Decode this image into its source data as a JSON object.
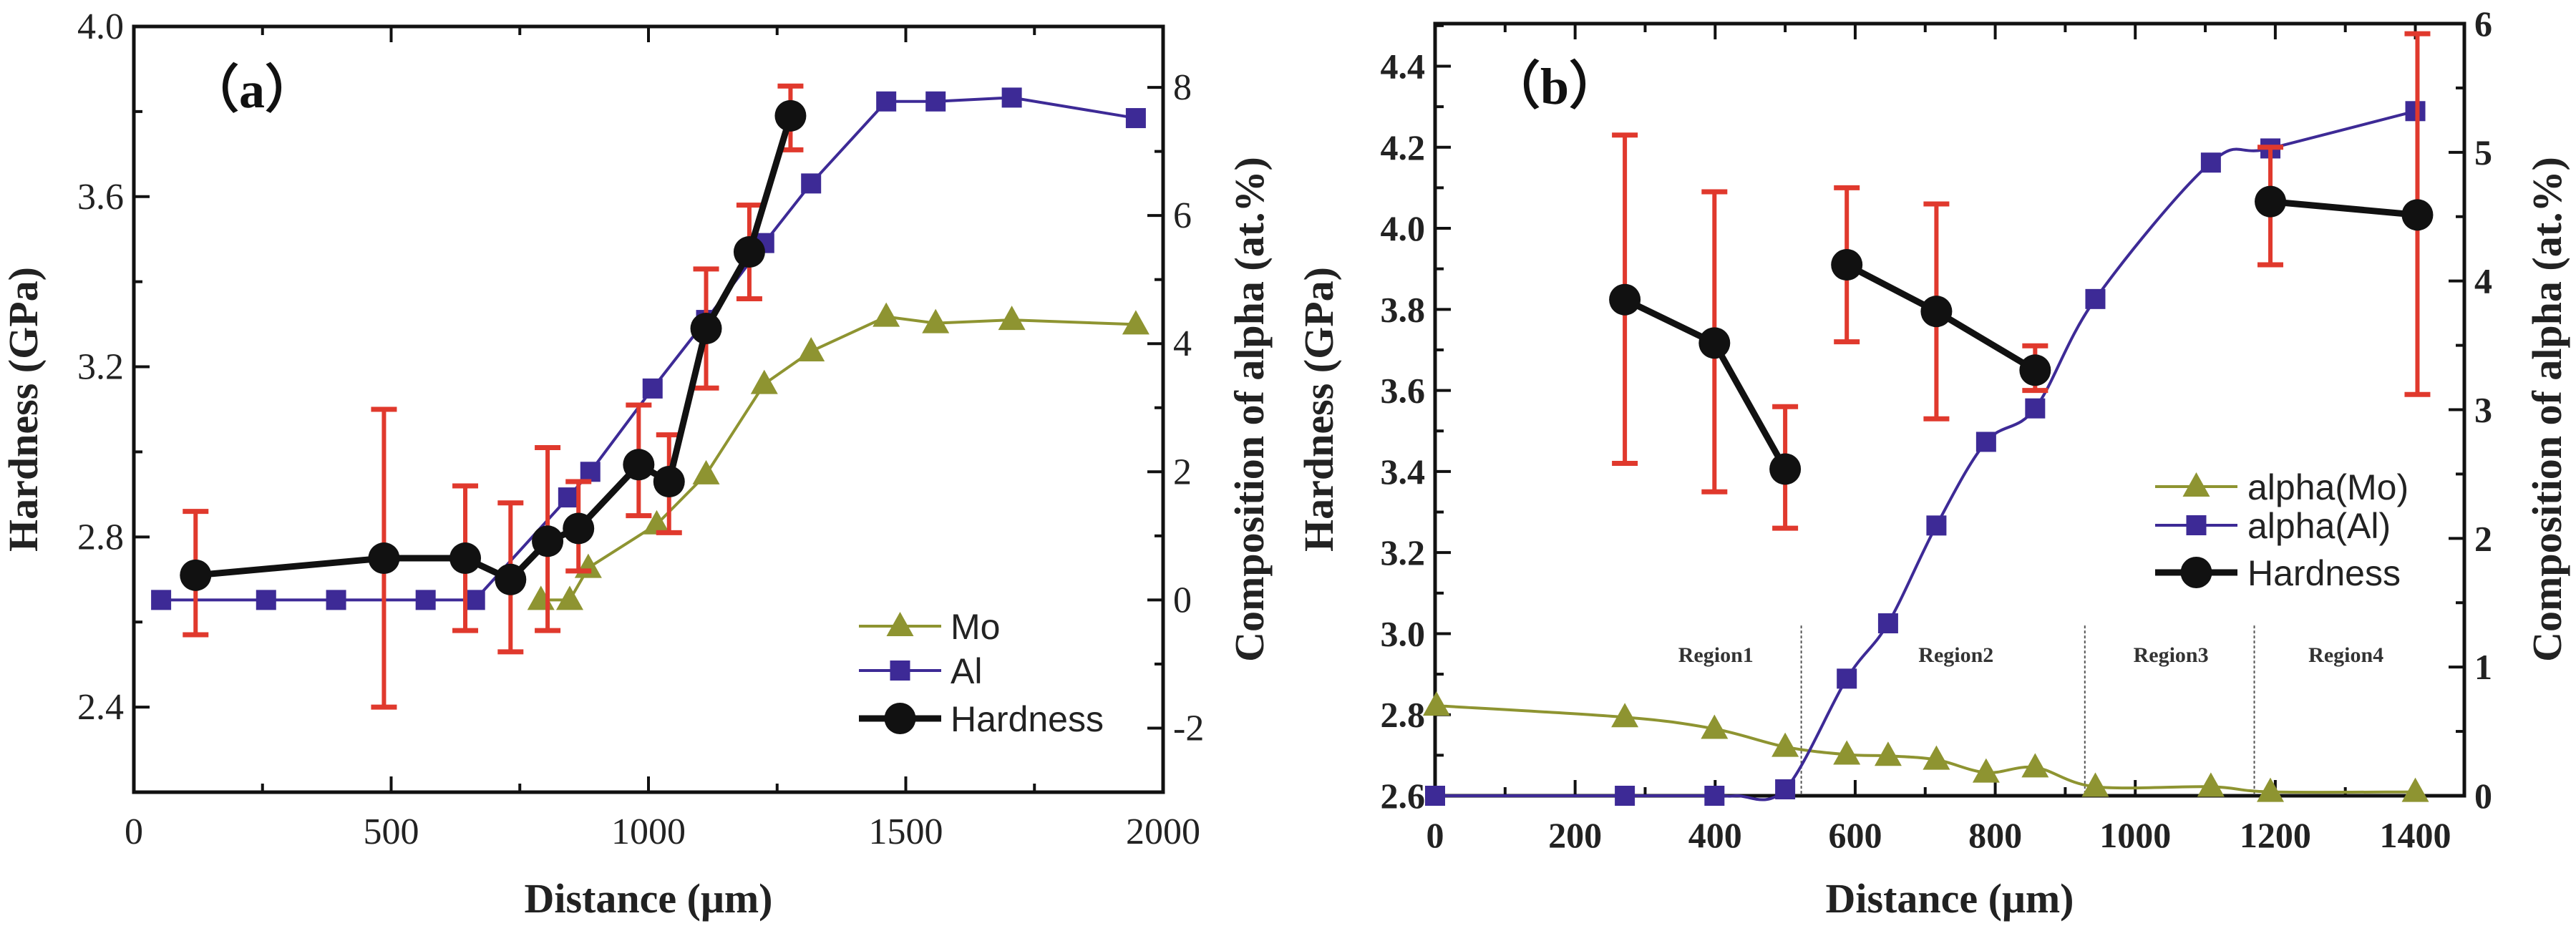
{
  "colors": {
    "mo": "#8e9431",
    "al": "#3d2a96",
    "hardness": "#111111",
    "error": "#e0392d",
    "axis": "#111111"
  },
  "chart_data": [
    {
      "type": "line",
      "panel_label": "（a）",
      "xlabel": "Distance (μm)",
      "ylabel": "Hardness (GPa)",
      "y2label": "Composition of alpha (at.%)",
      "xlim": [
        0,
        2000
      ],
      "ylim": [
        2.2,
        4.0
      ],
      "y2lim": [
        -3,
        8.95
      ],
      "xticks": [
        "0",
        "500",
        "1000",
        "1500",
        "2000"
      ],
      "xtick_values": [
        0,
        500,
        1000,
        1500,
        2000
      ],
      "yticks": [
        "2.4",
        "2.8",
        "3.2",
        "3.6",
        "4.0"
      ],
      "ytick_values": [
        2.4,
        2.8,
        3.2,
        3.6,
        4.0
      ],
      "y2ticks": [
        "-2",
        "0",
        "2",
        "4",
        "6",
        "8"
      ],
      "y2tick_values": [
        -2,
        0,
        2,
        4,
        6,
        8
      ],
      "legend_position": "bottom-right",
      "legend": [
        "Mo",
        "Al",
        "Hardness"
      ],
      "series": [
        {
          "name": "Mo",
          "axis": "right",
          "marker": "triangle",
          "smooth": false,
          "x": [
            791,
            847,
            883,
            1016,
            1112,
            1225,
            1316,
            1462,
            1558,
            1706,
            1947
          ],
          "y": [
            0,
            0,
            0.5,
            1.18,
            1.96,
            3.37,
            3.88,
            4.42,
            4.32,
            4.37,
            4.3
          ]
        },
        {
          "name": "Al",
          "axis": "right",
          "marker": "square",
          "smooth": false,
          "x": [
            53,
            257,
            393,
            567,
            663,
            844,
            887,
            1008,
            1112,
            1225,
            1316,
            1462,
            1558,
            1706,
            1947
          ],
          "y": [
            0,
            0,
            0,
            0,
            0,
            1.6,
            2.0,
            3.3,
            4.37,
            5.57,
            6.5,
            7.78,
            7.78,
            7.84,
            7.52
          ]
        },
        {
          "name": "Hardness",
          "axis": "left",
          "marker": "circle",
          "smooth": false,
          "segments": [
            [
              0,
              10
            ]
          ],
          "x": [
            120,
            486,
            644,
            732,
            804,
            864,
            981,
            1040,
            1112,
            1196,
            1276
          ],
          "y": [
            2.71,
            2.75,
            2.75,
            2.7,
            2.79,
            2.82,
            2.97,
            2.93,
            3.29,
            3.47,
            3.79
          ],
          "err_low": [
            2.57,
            2.4,
            2.58,
            2.53,
            2.58,
            2.72,
            2.85,
            2.81,
            3.15,
            3.36,
            3.71
          ],
          "err_high": [
            2.86,
            3.1,
            2.92,
            2.88,
            3.01,
            2.93,
            3.11,
            3.04,
            3.43,
            3.58,
            3.86
          ]
        }
      ]
    },
    {
      "type": "line",
      "panel_label": "（b）",
      "xlabel": "Distance (μm)",
      "ylabel": "Hardness (GPa)",
      "y2label": "Composition of alpha (at.%)",
      "xlim": [
        0,
        1470
      ],
      "ylim": [
        2.6,
        4.505
      ],
      "y2lim": [
        0,
        6
      ],
      "xticks": [
        "0",
        "200",
        "400",
        "600",
        "800",
        "1000",
        "1200",
        "1400"
      ],
      "xtick_values": [
        0,
        200,
        400,
        600,
        800,
        1000,
        1200,
        1400
      ],
      "yticks": [
        "2.6",
        "2.8",
        "3.0",
        "3.2",
        "3.4",
        "3.6",
        "3.8",
        "4.0",
        "4.2",
        "4.4"
      ],
      "ytick_values": [
        2.6,
        2.8,
        3.0,
        3.2,
        3.4,
        3.6,
        3.8,
        4.0,
        4.2,
        4.4
      ],
      "y2ticks": [
        "0",
        "1",
        "2",
        "3",
        "4",
        "5",
        "6"
      ],
      "y2tick_values": [
        0,
        1,
        2,
        3,
        4,
        5,
        6
      ],
      "legend_position": "center-right",
      "legend": [
        "alpha(Mo)",
        "alpha(Al)",
        "Hardness"
      ],
      "regions": {
        "labels": [
          "Region1",
          "Region2",
          "Region3",
          "Region4"
        ],
        "label_x": [
          401,
          744,
          1051,
          1301
        ],
        "label_y": 2.93,
        "dividers_x": [
          523,
          928,
          1170
        ],
        "divider_top": 3.02
      },
      "series": [
        {
          "name": "alpha(Mo)",
          "axis": "right",
          "marker": "triangle",
          "smooth": true,
          "x": [
            2,
            271,
            399,
            500,
            588,
            647,
            716,
            787,
            857,
            943,
            1108,
            1193,
            1400
          ],
          "y": [
            0.7,
            0.61,
            0.52,
            0.38,
            0.32,
            0.31,
            0.28,
            0.18,
            0.22,
            0.07,
            0.07,
            0.03,
            0.03
          ]
        },
        {
          "name": "alpha(Al)",
          "axis": "right",
          "marker": "square",
          "smooth": true,
          "x": [
            0,
            271,
            399,
            430,
            500,
            588,
            647,
            716,
            787,
            857,
            943,
            1108,
            1193,
            1400
          ],
          "y": [
            0,
            0,
            0,
            0,
            0.05,
            0.91,
            1.34,
            2.1,
            2.75,
            3.01,
            3.86,
            4.92,
            5.03,
            5.32
          ],
          "marker_skip": [
            3
          ]
        },
        {
          "name": "Hardness",
          "axis": "left",
          "marker": "circle",
          "smooth": false,
          "segments": [
            [
              0,
              2
            ],
            [
              3,
              5
            ],
            [
              6,
              7
            ]
          ],
          "x": [
            271,
            399,
            500,
            588,
            716,
            857,
            1193,
            1403
          ],
          "y": [
            3.824,
            3.717,
            3.406,
            3.91,
            3.795,
            3.65,
            4.066,
            4.033
          ],
          "err_low": [
            3.42,
            3.35,
            3.26,
            3.72,
            3.53,
            3.6,
            3.91,
            3.59
          ],
          "err_high": [
            4.23,
            4.09,
            3.56,
            4.1,
            4.06,
            3.71,
            4.2,
            4.48
          ]
        }
      ]
    }
  ]
}
